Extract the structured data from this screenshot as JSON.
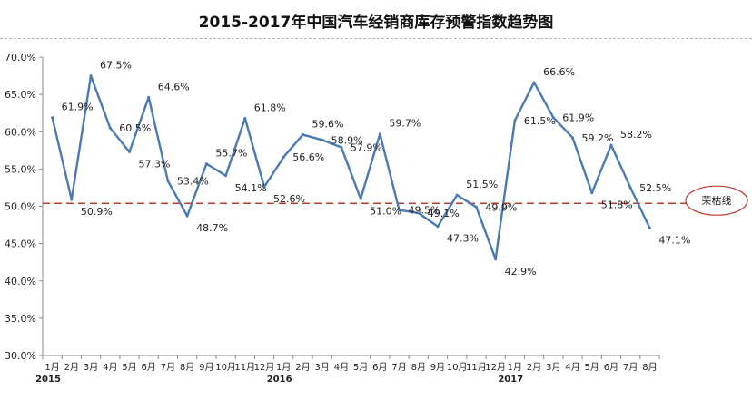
{
  "chart_data": {
    "type": "line",
    "title": "2015-2017年中国汽车经销商库存预警指数趋势图",
    "xlabel": "",
    "ylabel": "",
    "ylim": [
      30,
      70
    ],
    "yticks": [
      "30.0%",
      "35.0%",
      "40.0%",
      "45.0%",
      "50.0%",
      "55.0%",
      "60.0%",
      "65.0%",
      "70.0%"
    ],
    "categories": [
      "1月",
      "2月",
      "3月",
      "4月",
      "5月",
      "6月",
      "7月",
      "8月",
      "9月",
      "10月",
      "11月",
      "12月",
      "1月",
      "2月",
      "3月",
      "4月",
      "5月",
      "6月",
      "7月",
      "8月",
      "9月",
      "10月",
      "11月",
      "12月",
      "1月",
      "2月",
      "3月",
      "4月",
      "5月",
      "6月",
      "7月",
      "8月"
    ],
    "year_labels": [
      {
        "index": 0,
        "label": "2015"
      },
      {
        "index": 12,
        "label": "2016"
      },
      {
        "index": 24,
        "label": "2017"
      }
    ],
    "series": [
      {
        "color": "#4a7ab5",
        "values": [
          61.9,
          50.9,
          67.5,
          60.5,
          57.3,
          64.6,
          53.4,
          48.7,
          55.7,
          54.1,
          61.8,
          52.6,
          56.6,
          59.6,
          58.9,
          57.9,
          51.0,
          59.7,
          49.5,
          49.1,
          47.3,
          51.5,
          49.9,
          42.9,
          61.5,
          66.6,
          61.9,
          59.2,
          51.8,
          58.2,
          52.5,
          47.1
        ],
        "labels": [
          "61.9%",
          "50.9%",
          "67.5%",
          "60.5%",
          "57.3%",
          "64.6%",
          "53.4%",
          "48.7%",
          "55.7%",
          "54.1%",
          "61.8%",
          "52.6%",
          "56.6%",
          "59.6%",
          "58.9%",
          "57.9%",
          "51.0%",
          "59.7%",
          "49.5%",
          "49.1%",
          "47.3%",
          "51.5%",
          "49.9%",
          "42.9%",
          "61.5%",
          "66.6%",
          "61.9%",
          "59.2%",
          "51.8%",
          "58.2%",
          "52.5%",
          "47.1%"
        ]
      }
    ],
    "reference_line": {
      "value": 50.4,
      "label": "荣枯线",
      "color": "#c0392b"
    },
    "grid": false
  }
}
